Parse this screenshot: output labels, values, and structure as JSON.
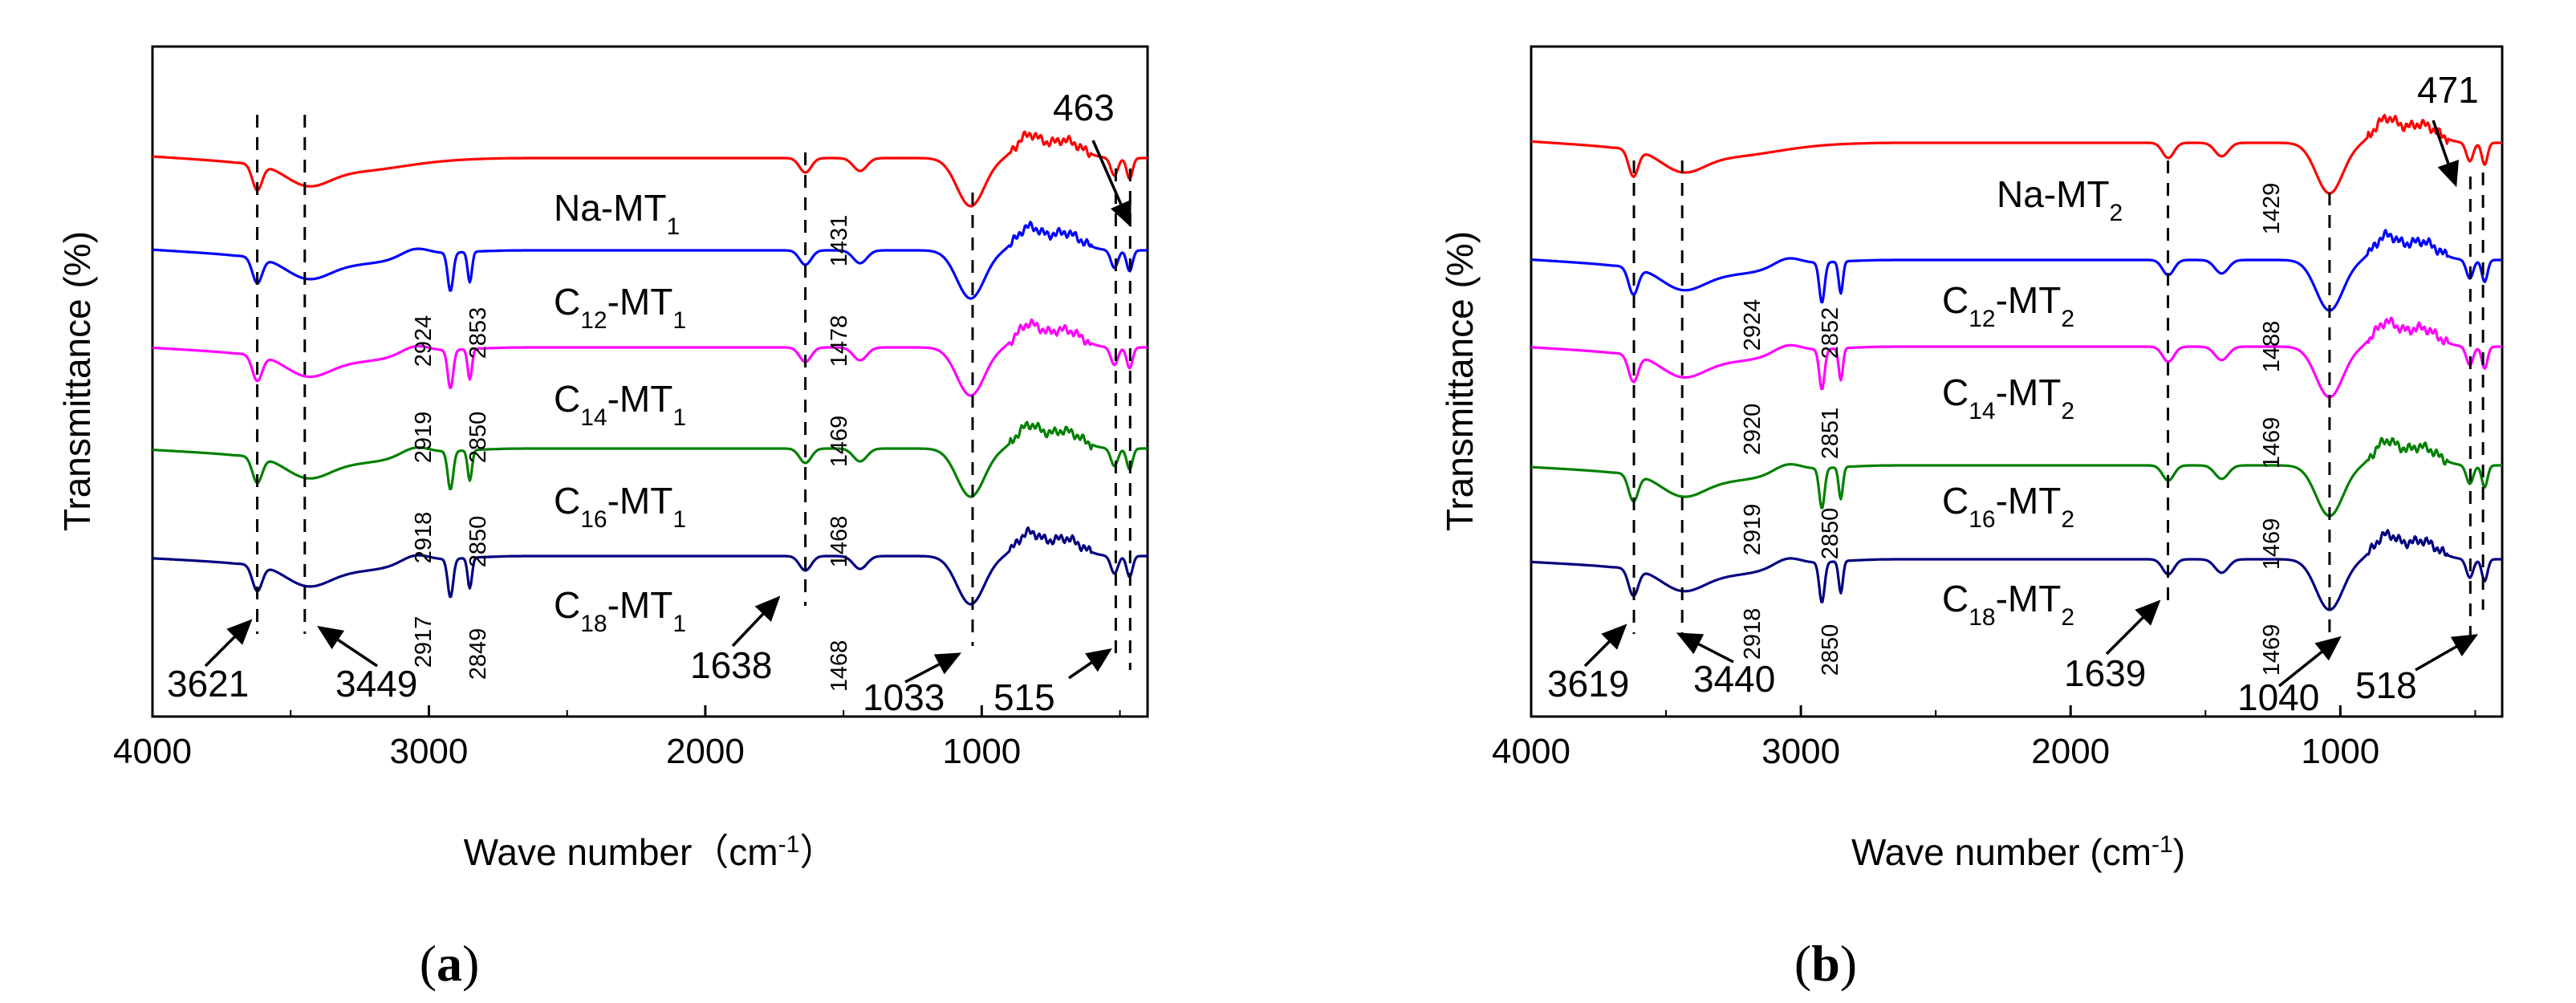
{
  "chart_data": [
    {
      "type": "line",
      "panel_label": "(a)",
      "panel_letter": "a",
      "xlabel": "Wave number（cm",
      "xlabel_sup": "-1",
      "xlabel_close": "）",
      "ylabel": "Transmittance (%)",
      "xlim": [
        4000,
        400
      ],
      "x_ticks": [
        4000,
        3000,
        2000,
        1000
      ],
      "x_tick_labels": [
        "4000",
        "3000",
        "2000",
        "1000"
      ],
      "y_ticks_shown": false,
      "series": [
        {
          "name": "Na-MT1",
          "label_main": "Na-MT",
          "label_sub": "1",
          "color": "#ff0000"
        },
        {
          "name": "C12-MT1",
          "label_pre": "C",
          "label_pre_sub": "12",
          "label_main": "-MT",
          "label_sub": "1",
          "color": "#0000ff"
        },
        {
          "name": "C14-MT1",
          "label_pre": "C",
          "label_pre_sub": "14",
          "label_main": "-MT",
          "label_sub": "1",
          "color": "#ff00ff"
        },
        {
          "name": "C16-MT1",
          "label_pre": "C",
          "label_pre_sub": "16",
          "label_main": "-MT",
          "label_sub": "1",
          "color": "#008000"
        },
        {
          "name": "C18-MT1",
          "label_pre": "C",
          "label_pre_sub": "18",
          "label_main": "-MT",
          "label_sub": "1",
          "color": "#000080"
        }
      ],
      "reference_lines": [
        3621,
        3449,
        1638,
        1033,
        515,
        463
      ],
      "peak_labels": [
        "3621",
        "3449",
        "1638",
        "1033",
        "515",
        "463"
      ],
      "rotated_labels": [
        "1431",
        "2924",
        "2853",
        "1478",
        "2919",
        "2850",
        "1469",
        "2918",
        "2850",
        "1468",
        "2917",
        "2849",
        "1468"
      ]
    },
    {
      "type": "line",
      "panel_label": "(b)",
      "panel_letter": "b",
      "xlabel": "Wave number (cm",
      "xlabel_sup": "-1",
      "xlabel_close": ")",
      "ylabel": "Transmittance (%)",
      "xlim": [
        4000,
        400
      ],
      "x_ticks": [
        4000,
        3000,
        2000,
        1000
      ],
      "x_tick_labels": [
        "4000",
        "3000",
        "2000",
        "1000"
      ],
      "y_ticks_shown": false,
      "series": [
        {
          "name": "Na-MT2",
          "label_main": "Na-MT",
          "label_sub": "2",
          "color": "#ff0000"
        },
        {
          "name": "C12-MT2",
          "label_pre": "C",
          "label_pre_sub": "12",
          "label_main": "-MT",
          "label_sub": "2",
          "color": "#0000ff"
        },
        {
          "name": "C14-MT2",
          "label_pre": "C",
          "label_pre_sub": "14",
          "label_main": "-MT",
          "label_sub": "2",
          "color": "#ff00ff"
        },
        {
          "name": "C16-MT2",
          "label_pre": "C",
          "label_pre_sub": "16",
          "label_main": "-MT",
          "label_sub": "2",
          "color": "#008000"
        },
        {
          "name": "C18-MT2",
          "label_pre": "C",
          "label_pre_sub": "18",
          "label_main": "-MT",
          "label_sub": "2",
          "color": "#000080"
        }
      ],
      "reference_lines": [
        3619,
        3440,
        1639,
        1040,
        518,
        471
      ],
      "peak_labels": [
        "3619",
        "3440",
        "1639",
        "1040",
        "518",
        "471"
      ],
      "rotated_labels": [
        "1429",
        "2924",
        "2852",
        "1488",
        "2920",
        "2851",
        "1469",
        "2919",
        "2850",
        "1469",
        "2918",
        "2850",
        "1469"
      ]
    }
  ]
}
